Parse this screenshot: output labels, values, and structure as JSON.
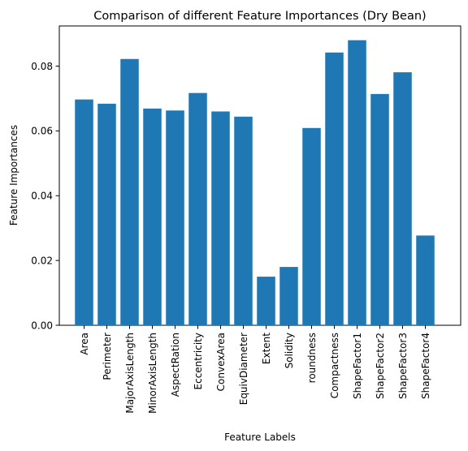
{
  "chart_data": {
    "type": "bar",
    "title": "Comparison of different Feature Importances (Dry Bean)",
    "xlabel": "Feature Labels",
    "ylabel": "Feature Importances",
    "categories": [
      "Area",
      "Perimeter",
      "MajorAxisLength",
      "MinorAxisLength",
      "AspectRation",
      "Eccentricity",
      "ConvexArea",
      "EquivDiameter",
      "Extent",
      "Solidity",
      "roundness",
      "Compactness",
      "ShapeFactor1",
      "ShapeFactor2",
      "ShapeFactor3",
      "ShapeFactor4"
    ],
    "values": [
      0.0697,
      0.0684,
      0.0822,
      0.0669,
      0.0663,
      0.0717,
      0.066,
      0.0644,
      0.015,
      0.018,
      0.0609,
      0.0842,
      0.088,
      0.0714,
      0.0781,
      0.0277
    ],
    "ylim": [
      0,
      0.0924
    ],
    "yticks": [
      "0.00",
      "0.02",
      "0.04",
      "0.06",
      "0.08"
    ],
    "ytick_values": [
      0,
      0.02,
      0.04,
      0.06,
      0.08
    ],
    "bar_color": "#1f77b4",
    "grid": false,
    "legend": "none"
  }
}
